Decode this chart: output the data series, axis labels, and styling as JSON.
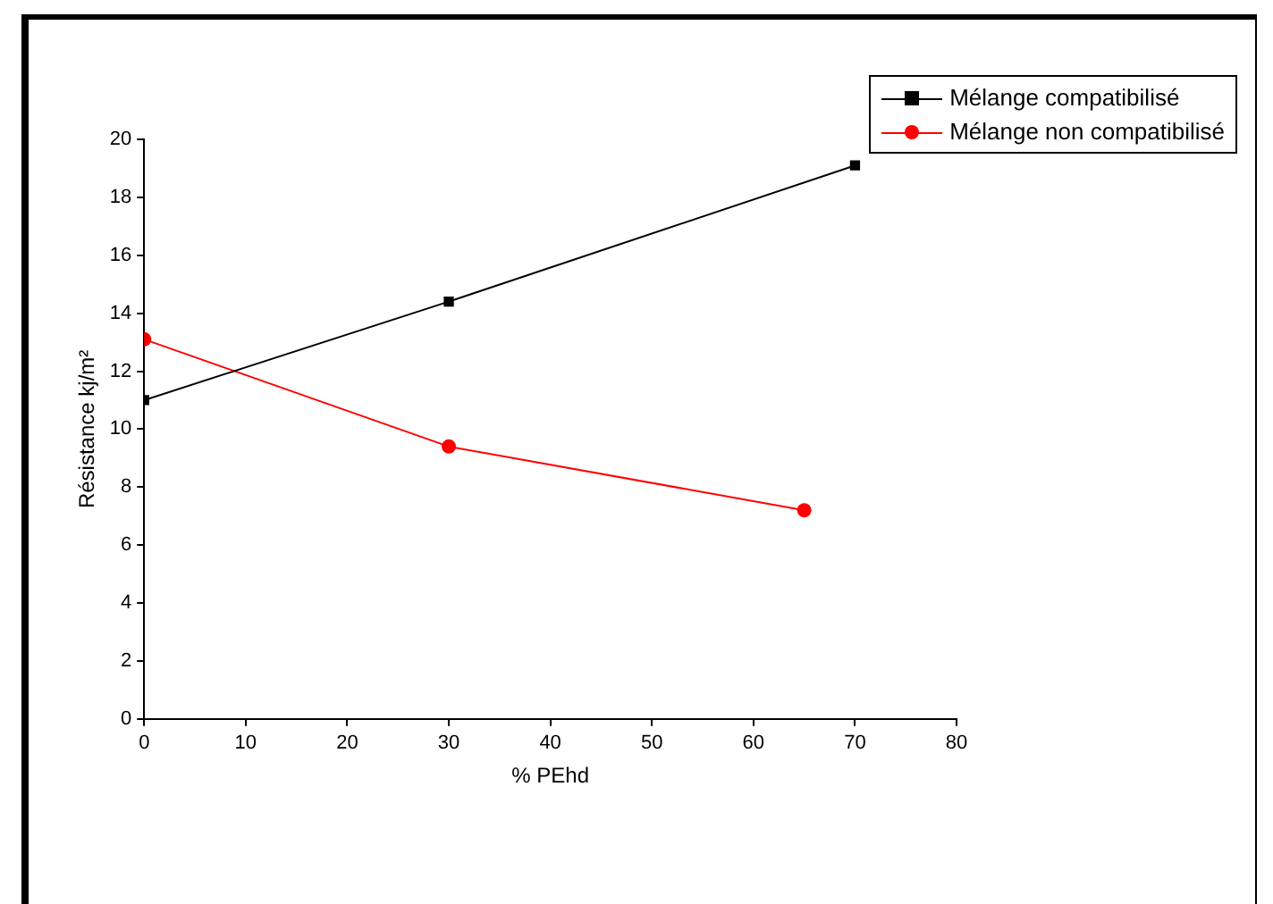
{
  "chart_data": {
    "type": "line",
    "xlabel": "% PEhd",
    "ylabel": "Résistance kj/m²",
    "xlim": [
      0,
      80
    ],
    "xticks": [
      0,
      10,
      20,
      30,
      40,
      50,
      60,
      70,
      80
    ],
    "ylim": [
      0,
      20
    ],
    "yticks": [
      0,
      2,
      4,
      6,
      8,
      10,
      12,
      14,
      16,
      18,
      20
    ],
    "grid": false,
    "legend": "top right",
    "series": [
      {
        "name": "Mélange compatibilisé",
        "color": "#000000",
        "marker": "square",
        "x": [
          0,
          30,
          70
        ],
        "values": [
          11,
          14.4,
          19.1
        ]
      },
      {
        "name": "Mélange non compatibilisé",
        "color": "#ff0000",
        "marker": "circle",
        "x": [
          0,
          30,
          65
        ],
        "values": [
          13.1,
          9.4,
          7.2
        ]
      }
    ]
  }
}
